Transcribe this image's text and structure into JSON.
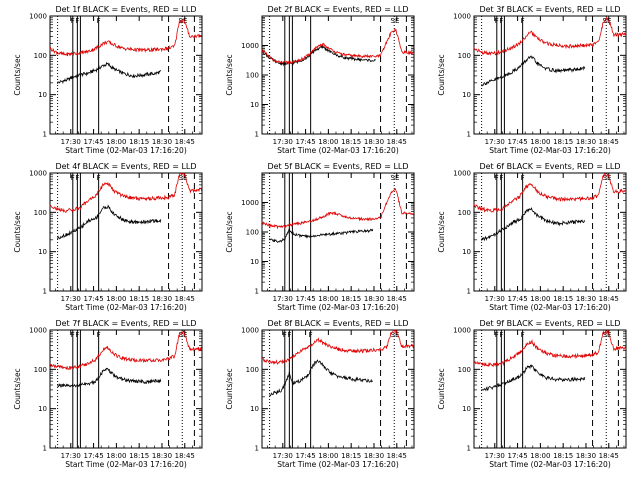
{
  "figure": {
    "y_tick_labels": [
      "1",
      "10",
      "100",
      "1000"
    ],
    "x_tick_labels": [
      "17:30",
      "17:45",
      "18:00",
      "18:15",
      "18:30",
      "18:45"
    ],
    "x_label": "Start Time (02-Mar-03 17:16:20)",
    "y_label": "Counts/sec",
    "colors": {
      "events": "#000000",
      "lld": "#e00000",
      "frame": "#000000",
      "background": "#ffffff"
    }
  },
  "chart_data": [
    {
      "type": "line",
      "title": "Det 1f BLACK = Events, RED = LLD",
      "x_unit": "minutes after 17:16:20",
      "xlim": [
        0,
        100
      ],
      "ylim": [
        1,
        1000
      ],
      "y_scale": "log",
      "solid_markers": [
        15,
        18,
        20,
        32
      ],
      "dashed_markers": [
        78,
        95
      ],
      "dotted_markers": [
        5,
        87
      ],
      "flags": [
        {
          "text": "F",
          "x": 15
        },
        {
          "text": "F",
          "x": 18
        },
        {
          "text": "F",
          "x": 32
        },
        {
          "text": "S",
          "x": 86
        },
        {
          "text": "E",
          "x": 89
        }
      ],
      "series": [
        {
          "name": "Events",
          "x": [
            5,
            8,
            12,
            15,
            20,
            25,
            30,
            35,
            38,
            42,
            48,
            55,
            62,
            70,
            73
          ],
          "y": [
            20,
            22,
            24,
            28,
            32,
            35,
            42,
            55,
            60,
            45,
            35,
            30,
            32,
            35,
            38
          ]
        },
        {
          "name": "LLD",
          "x": [
            0,
            5,
            10,
            15,
            20,
            25,
            30,
            35,
            38,
            42,
            48,
            55,
            62,
            70,
            78,
            82,
            85,
            88,
            92,
            100
          ],
          "y": [
            150,
            115,
            105,
            110,
            115,
            125,
            150,
            200,
            220,
            185,
            150,
            140,
            135,
            140,
            150,
            170,
            700,
            800,
            300,
            320
          ]
        }
      ]
    },
    {
      "type": "line",
      "title": "Det 2f BLACK = Events, RED = LLD",
      "x_unit": "minutes after 17:16:20",
      "xlim": [
        0,
        100
      ],
      "ylim": [
        1,
        10000
      ],
      "y_scale": "log",
      "solid_markers": [
        15,
        18,
        20,
        32
      ],
      "dashed_markers": [
        78,
        95
      ],
      "dotted_markers": [
        5,
        87
      ],
      "flags": [
        {
          "text": "S",
          "x": 86
        },
        {
          "text": "E",
          "x": 89
        }
      ],
      "series": [
        {
          "name": "Events",
          "x": [
            0,
            5,
            10,
            15,
            20,
            25,
            30,
            35,
            40,
            45,
            50,
            55,
            60,
            65,
            70,
            75
          ],
          "y": [
            650,
            380,
            260,
            240,
            250,
            300,
            400,
            700,
            900,
            600,
            450,
            380,
            350,
            330,
            320,
            300
          ]
        },
        {
          "name": "LLD",
          "x": [
            0,
            5,
            10,
            15,
            20,
            25,
            30,
            35,
            40,
            45,
            50,
            55,
            60,
            65,
            70,
            75,
            78,
            82,
            85,
            88,
            92,
            100
          ],
          "y": [
            700,
            400,
            280,
            260,
            270,
            320,
            450,
            800,
            1100,
            750,
            550,
            480,
            450,
            440,
            430,
            420,
            450,
            1300,
            2800,
            3500,
            600,
            550
          ]
        }
      ]
    },
    {
      "type": "line",
      "title": "Det 3f BLACK = Events, RED = LLD",
      "x_unit": "minutes after 17:16:20",
      "xlim": [
        0,
        100
      ],
      "ylim": [
        1,
        1000
      ],
      "y_scale": "log",
      "solid_markers": [
        15,
        18,
        20,
        32
      ],
      "dashed_markers": [
        78,
        95
      ],
      "dotted_markers": [
        5,
        87
      ],
      "flags": [
        {
          "text": "F",
          "x": 15
        },
        {
          "text": "F",
          "x": 18
        },
        {
          "text": "F",
          "x": 32
        },
        {
          "text": "S",
          "x": 86
        },
        {
          "text": "E",
          "x": 89
        }
      ],
      "series": [
        {
          "name": "Events",
          "x": [
            5,
            8,
            12,
            15,
            20,
            25,
            30,
            35,
            38,
            42,
            48,
            55,
            62,
            70,
            73
          ],
          "y": [
            18,
            20,
            22,
            25,
            30,
            38,
            50,
            80,
            90,
            60,
            45,
            40,
            42,
            45,
            48
          ]
        },
        {
          "name": "LLD",
          "x": [
            0,
            5,
            10,
            15,
            20,
            25,
            30,
            35,
            38,
            42,
            48,
            55,
            62,
            70,
            78,
            82,
            85,
            88,
            92,
            100
          ],
          "y": [
            150,
            120,
            110,
            115,
            130,
            160,
            200,
            330,
            380,
            260,
            200,
            180,
            170,
            175,
            185,
            220,
            700,
            900,
            330,
            350
          ]
        }
      ]
    },
    {
      "type": "line",
      "title": "Det 4f BLACK = Events, RED = LLD",
      "x_unit": "minutes after 17:16:20",
      "xlim": [
        0,
        100
      ],
      "ylim": [
        1,
        1000
      ],
      "y_scale": "log",
      "solid_markers": [
        15,
        18,
        20,
        32
      ],
      "dashed_markers": [
        78,
        95
      ],
      "dotted_markers": [
        5,
        87
      ],
      "flags": [
        {
          "text": "F",
          "x": 15
        },
        {
          "text": "F",
          "x": 18
        },
        {
          "text": "F",
          "x": 32
        },
        {
          "text": "S",
          "x": 86
        },
        {
          "text": "E",
          "x": 89
        }
      ],
      "series": [
        {
          "name": "Events",
          "x": [
            5,
            8,
            12,
            15,
            20,
            25,
            30,
            35,
            38,
            42,
            48,
            55,
            62,
            70,
            73
          ],
          "y": [
            22,
            25,
            28,
            32,
            40,
            60,
            70,
            130,
            140,
            90,
            65,
            55,
            58,
            60,
            62
          ]
        },
        {
          "name": "LLD",
          "x": [
            0,
            5,
            10,
            15,
            20,
            25,
            30,
            35,
            38,
            42,
            48,
            55,
            62,
            70,
            78,
            82,
            85,
            88,
            92,
            100
          ],
          "y": [
            150,
            120,
            110,
            115,
            130,
            200,
            260,
            500,
            560,
            350,
            260,
            230,
            220,
            230,
            240,
            280,
            900,
            1000,
            350,
            380
          ]
        }
      ]
    },
    {
      "type": "line",
      "title": "Det 5f BLACK = Events, RED = LLD",
      "x_unit": "minutes after 17:16:20",
      "xlim": [
        0,
        100
      ],
      "ylim": [
        1,
        10000
      ],
      "y_scale": "log",
      "solid_markers": [
        15,
        18,
        20,
        32
      ],
      "dashed_markers": [
        78,
        95
      ],
      "dotted_markers": [
        5,
        87
      ],
      "flags": [
        {
          "text": "S",
          "x": 86
        },
        {
          "text": "E",
          "x": 89
        }
      ],
      "series": [
        {
          "name": "Events",
          "x": [
            5,
            10,
            15,
            18,
            20,
            25,
            30,
            35,
            40,
            45,
            50,
            55,
            60,
            65,
            70,
            73
          ],
          "y": [
            55,
            48,
            55,
            130,
            90,
            75,
            70,
            75,
            80,
            85,
            90,
            95,
            100,
            105,
            110,
            115
          ]
        },
        {
          "name": "LLD",
          "x": [
            0,
            5,
            10,
            15,
            20,
            25,
            30,
            35,
            40,
            45,
            50,
            55,
            60,
            65,
            70,
            75,
            78,
            82,
            85,
            88,
            92,
            100
          ],
          "y": [
            200,
            170,
            150,
            160,
            180,
            200,
            220,
            260,
            330,
            450,
            400,
            320,
            290,
            280,
            270,
            280,
            300,
            1000,
            2200,
            2800,
            450,
            420
          ]
        }
      ]
    },
    {
      "type": "line",
      "title": "Det 6f BLACK = Events, RED = LLD",
      "x_unit": "minutes after 17:16:20",
      "xlim": [
        0,
        100
      ],
      "ylim": [
        1,
        1000
      ],
      "y_scale": "log",
      "solid_markers": [
        15,
        18,
        20,
        32
      ],
      "dashed_markers": [
        78,
        95
      ],
      "dotted_markers": [
        5,
        87
      ],
      "flags": [
        {
          "text": "F",
          "x": 15
        },
        {
          "text": "F",
          "x": 18
        },
        {
          "text": "F",
          "x": 32
        },
        {
          "text": "S",
          "x": 86
        },
        {
          "text": "E",
          "x": 89
        }
      ],
      "series": [
        {
          "name": "Events",
          "x": [
            5,
            8,
            12,
            15,
            20,
            25,
            30,
            35,
            38,
            42,
            48,
            55,
            62,
            70,
            73
          ],
          "y": [
            20,
            22,
            25,
            30,
            38,
            55,
            65,
            110,
            120,
            80,
            60,
            52,
            55,
            58,
            60
          ]
        },
        {
          "name": "LLD",
          "x": [
            0,
            5,
            10,
            15,
            20,
            25,
            30,
            35,
            38,
            42,
            48,
            55,
            62,
            70,
            78,
            82,
            85,
            88,
            92,
            100
          ],
          "y": [
            150,
            120,
            110,
            115,
            130,
            190,
            250,
            480,
            520,
            330,
            250,
            220,
            210,
            220,
            230,
            270,
            850,
            950,
            330,
            360
          ]
        }
      ]
    },
    {
      "type": "line",
      "title": "Det 7f BLACK = Events, RED = LLD",
      "x_unit": "minutes after 17:16:20",
      "xlim": [
        0,
        100
      ],
      "ylim": [
        1,
        1000
      ],
      "y_scale": "log",
      "solid_markers": [
        15,
        18,
        20,
        32
      ],
      "dashed_markers": [
        78,
        95
      ],
      "dotted_markers": [
        5,
        87
      ],
      "flags": [
        {
          "text": "F",
          "x": 15
        },
        {
          "text": "F",
          "x": 18
        },
        {
          "text": "F",
          "x": 32
        },
        {
          "text": "S",
          "x": 86
        },
        {
          "text": "E",
          "x": 89
        }
      ],
      "series": [
        {
          "name": "Events",
          "x": [
            5,
            8,
            12,
            15,
            20,
            25,
            30,
            35,
            38,
            42,
            48,
            55,
            62,
            70,
            73
          ],
          "y": [
            40,
            38,
            37,
            38,
            40,
            42,
            50,
            90,
            100,
            70,
            55,
            50,
            48,
            50,
            52
          ]
        },
        {
          "name": "LLD",
          "x": [
            0,
            5,
            10,
            15,
            20,
            25,
            30,
            35,
            38,
            42,
            48,
            55,
            62,
            70,
            78,
            82,
            85,
            88,
            92,
            100
          ],
          "y": [
            130,
            115,
            110,
            110,
            120,
            140,
            180,
            320,
            360,
            240,
            190,
            170,
            165,
            170,
            180,
            220,
            750,
            900,
            320,
            340
          ]
        }
      ]
    },
    {
      "type": "line",
      "title": "Det 8f BLACK = Events, RED = LLD",
      "x_unit": "minutes after 17:16:20",
      "xlim": [
        0,
        100
      ],
      "ylim": [
        1,
        1000
      ],
      "y_scale": "log",
      "solid_markers": [
        15,
        18,
        20,
        32
      ],
      "dashed_markers": [
        78,
        95
      ],
      "dotted_markers": [
        5,
        87
      ],
      "flags": [
        {
          "text": "F",
          "x": 15
        },
        {
          "text": "F",
          "x": 18
        },
        {
          "text": "F",
          "x": 32
        },
        {
          "text": "S",
          "x": 86
        },
        {
          "text": "E",
          "x": 89
        }
      ],
      "series": [
        {
          "name": "Events",
          "x": [
            5,
            8,
            12,
            15,
            18,
            20,
            25,
            30,
            35,
            38,
            42,
            48,
            55,
            62,
            70,
            73
          ],
          "y": [
            22,
            25,
            28,
            40,
            80,
            45,
            50,
            70,
            150,
            160,
            100,
            70,
            60,
            55,
            52,
            50
          ]
        },
        {
          "name": "LLD",
          "x": [
            0,
            5,
            10,
            15,
            20,
            25,
            30,
            35,
            38,
            42,
            48,
            55,
            62,
            70,
            78,
            82,
            85,
            88,
            92,
            100
          ],
          "y": [
            180,
            160,
            150,
            160,
            200,
            280,
            350,
            520,
            560,
            420,
            340,
            300,
            290,
            300,
            320,
            360,
            900,
            1000,
            380,
            400
          ]
        }
      ]
    },
    {
      "type": "line",
      "title": "Det 9f BLACK = Events, RED = LLD",
      "x_unit": "minutes after 17:16:20",
      "xlim": [
        0,
        100
      ],
      "ylim": [
        1,
        1000
      ],
      "y_scale": "log",
      "solid_markers": [
        15,
        18,
        20,
        32
      ],
      "dashed_markers": [
        78,
        95
      ],
      "dotted_markers": [
        5,
        87
      ],
      "flags": [
        {
          "text": "F",
          "x": 15
        },
        {
          "text": "F",
          "x": 18
        },
        {
          "text": "F",
          "x": 32
        },
        {
          "text": "S",
          "x": 86
        },
        {
          "text": "E",
          "x": 89
        }
      ],
      "series": [
        {
          "name": "Events",
          "x": [
            5,
            8,
            12,
            15,
            20,
            25,
            30,
            35,
            38,
            42,
            48,
            55,
            62,
            70,
            73
          ],
          "y": [
            30,
            32,
            35,
            38,
            45,
            55,
            65,
            110,
            120,
            80,
            60,
            55,
            55,
            57,
            60
          ]
        },
        {
          "name": "LLD",
          "x": [
            0,
            5,
            10,
            15,
            20,
            25,
            30,
            35,
            38,
            42,
            48,
            55,
            62,
            70,
            78,
            82,
            85,
            88,
            92,
            100
          ],
          "y": [
            160,
            140,
            130,
            135,
            150,
            200,
            260,
            450,
            500,
            330,
            250,
            220,
            215,
            220,
            235,
            280,
            850,
            950,
            330,
            360
          ]
        }
      ]
    }
  ]
}
